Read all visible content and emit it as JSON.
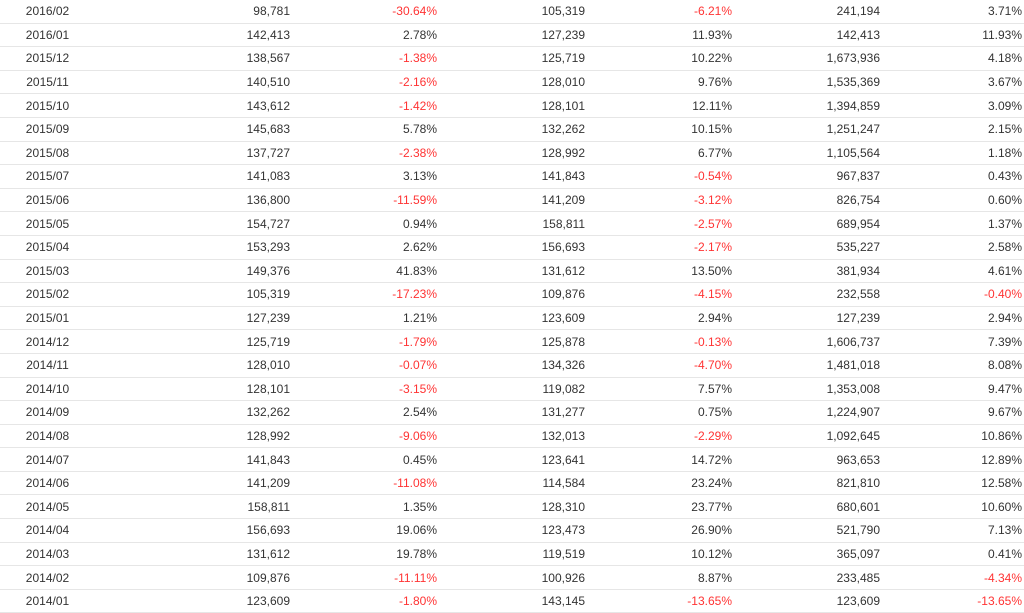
{
  "colors": {
    "negative": "#ff3333",
    "text": "#333333",
    "row_border": "#e6e6e6"
  },
  "rows": [
    [
      "2016/02",
      "98,781",
      "-30.64%",
      "105,319",
      "-6.21%",
      "241,194",
      "3.71%"
    ],
    [
      "2016/01",
      "142,413",
      "2.78%",
      "127,239",
      "11.93%",
      "142,413",
      "11.93%"
    ],
    [
      "2015/12",
      "138,567",
      "-1.38%",
      "125,719",
      "10.22%",
      "1,673,936",
      "4.18%"
    ],
    [
      "2015/11",
      "140,510",
      "-2.16%",
      "128,010",
      "9.76%",
      "1,535,369",
      "3.67%"
    ],
    [
      "2015/10",
      "143,612",
      "-1.42%",
      "128,101",
      "12.11%",
      "1,394,859",
      "3.09%"
    ],
    [
      "2015/09",
      "145,683",
      "5.78%",
      "132,262",
      "10.15%",
      "1,251,247",
      "2.15%"
    ],
    [
      "2015/08",
      "137,727",
      "-2.38%",
      "128,992",
      "6.77%",
      "1,105,564",
      "1.18%"
    ],
    [
      "2015/07",
      "141,083",
      "3.13%",
      "141,843",
      "-0.54%",
      "967,837",
      "0.43%"
    ],
    [
      "2015/06",
      "136,800",
      "-11.59%",
      "141,209",
      "-3.12%",
      "826,754",
      "0.60%"
    ],
    [
      "2015/05",
      "154,727",
      "0.94%",
      "158,811",
      "-2.57%",
      "689,954",
      "1.37%"
    ],
    [
      "2015/04",
      "153,293",
      "2.62%",
      "156,693",
      "-2.17%",
      "535,227",
      "2.58%"
    ],
    [
      "2015/03",
      "149,376",
      "41.83%",
      "131,612",
      "13.50%",
      "381,934",
      "4.61%"
    ],
    [
      "2015/02",
      "105,319",
      "-17.23%",
      "109,876",
      "-4.15%",
      "232,558",
      "-0.40%"
    ],
    [
      "2015/01",
      "127,239",
      "1.21%",
      "123,609",
      "2.94%",
      "127,239",
      "2.94%"
    ],
    [
      "2014/12",
      "125,719",
      "-1.79%",
      "125,878",
      "-0.13%",
      "1,606,737",
      "7.39%"
    ],
    [
      "2014/11",
      "128,010",
      "-0.07%",
      "134,326",
      "-4.70%",
      "1,481,018",
      "8.08%"
    ],
    [
      "2014/10",
      "128,101",
      "-3.15%",
      "119,082",
      "7.57%",
      "1,353,008",
      "9.47%"
    ],
    [
      "2014/09",
      "132,262",
      "2.54%",
      "131,277",
      "0.75%",
      "1,224,907",
      "9.67%"
    ],
    [
      "2014/08",
      "128,992",
      "-9.06%",
      "132,013",
      "-2.29%",
      "1,092,645",
      "10.86%"
    ],
    [
      "2014/07",
      "141,843",
      "0.45%",
      "123,641",
      "14.72%",
      "963,653",
      "12.89%"
    ],
    [
      "2014/06",
      "141,209",
      "-11.08%",
      "114,584",
      "23.24%",
      "821,810",
      "12.58%"
    ],
    [
      "2014/05",
      "158,811",
      "1.35%",
      "128,310",
      "23.77%",
      "680,601",
      "10.60%"
    ],
    [
      "2014/04",
      "156,693",
      "19.06%",
      "123,473",
      "26.90%",
      "521,790",
      "7.13%"
    ],
    [
      "2014/03",
      "131,612",
      "19.78%",
      "119,519",
      "10.12%",
      "365,097",
      "0.41%"
    ],
    [
      "2014/02",
      "109,876",
      "-11.11%",
      "100,926",
      "8.87%",
      "233,485",
      "-4.34%"
    ],
    [
      "2014/01",
      "123,609",
      "-1.80%",
      "143,145",
      "-13.65%",
      "123,609",
      "-13.65%"
    ]
  ]
}
